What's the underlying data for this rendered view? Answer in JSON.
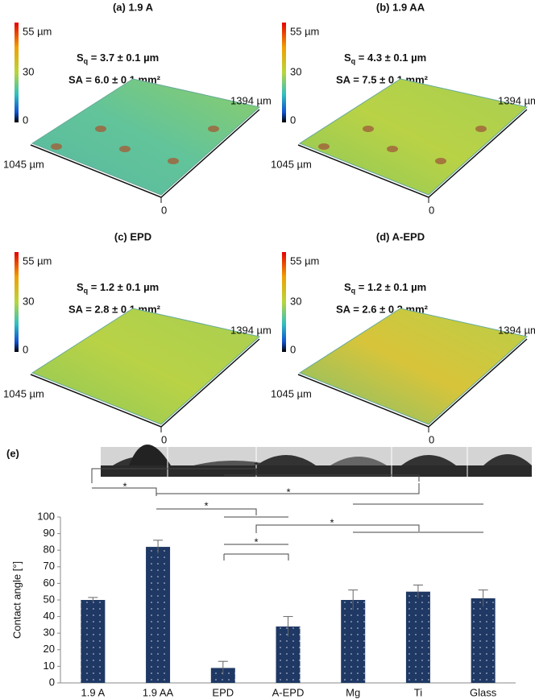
{
  "panels": [
    {
      "title": "(a) 1.9 A",
      "colorbar_ticks": [
        "55 µm",
        "30",
        "0"
      ],
      "sq": {
        "symbol": "S",
        "sub": "q",
        "text": " = 3.7 ± 0.1 µm"
      },
      "sa": "SA = 6.0 ± 0.1 mm²",
      "axis_labels": [
        "1394 µm",
        "1045 µm",
        "0"
      ]
    },
    {
      "title": "(b) 1.9 AA",
      "colorbar_ticks": [
        "55 µm",
        "30",
        "0"
      ],
      "sq": {
        "symbol": "S",
        "sub": "q",
        "text": " = 4.3 ± 0.1 µm"
      },
      "sa": "SA = 7.5 ± 0.1 mm²",
      "axis_labels": [
        "1394 µm",
        "1045 µm",
        "0"
      ]
    },
    {
      "title": "(c) EPD",
      "colorbar_ticks": [
        "55 µm",
        "30",
        "0"
      ],
      "sq": {
        "symbol": "S",
        "sub": "q",
        "text": " = 1.2 ± 0.1 µm"
      },
      "sa": "SA = 2.8 ± 0.1 mm²",
      "axis_labels": [
        "1394 µm",
        "1045 µm",
        "0"
      ]
    },
    {
      "title": "(d) A-EPD",
      "colorbar_ticks": [
        "55 µm",
        "30",
        "0"
      ],
      "sq": {
        "symbol": "S",
        "sub": "q",
        "text": " = 1.2 ± 0.1 µm"
      },
      "sa": "SA = 2.6 ± 0.2 mm²",
      "axis_labels": [
        "1394 µm",
        "1045 µm",
        "0"
      ]
    }
  ],
  "chart_data": {
    "type": "bar",
    "panel_label": "(e)",
    "ylabel": "Contact angle [°]",
    "categories": [
      "1.9 A",
      "1.9 AA",
      "EPD",
      "A-EPD",
      "Mg",
      "Ti",
      "Glass"
    ],
    "values": [
      50,
      82,
      9,
      34,
      50,
      55,
      51
    ],
    "errors": [
      1.5,
      4,
      4,
      6,
      6,
      4,
      5
    ],
    "color": "#1f3864",
    "ylim": [
      0,
      100
    ],
    "yticks": [
      0,
      10,
      20,
      30,
      40,
      50,
      60,
      70,
      80,
      90,
      100
    ],
    "significance_labels": [
      "*",
      "*",
      "*",
      "*",
      "*",
      "*"
    ]
  }
}
